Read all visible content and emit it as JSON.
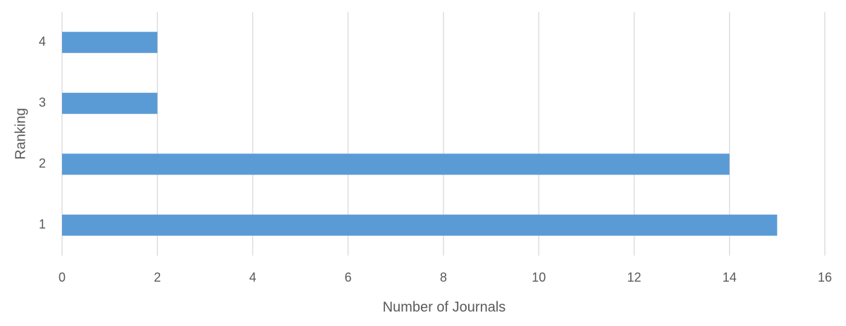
{
  "chart_data": {
    "type": "bar",
    "orientation": "horizontal",
    "categories": [
      "1",
      "2",
      "3",
      "4"
    ],
    "values": [
      15,
      14,
      2,
      2
    ],
    "color": "#5b9bd5",
    "xlim": [
      0,
      16
    ],
    "xticks": [
      0,
      2,
      4,
      6,
      8,
      10,
      12,
      14,
      16
    ],
    "grid": true,
    "xlabel": "Number of Journals",
    "ylabel": "Ranking"
  }
}
